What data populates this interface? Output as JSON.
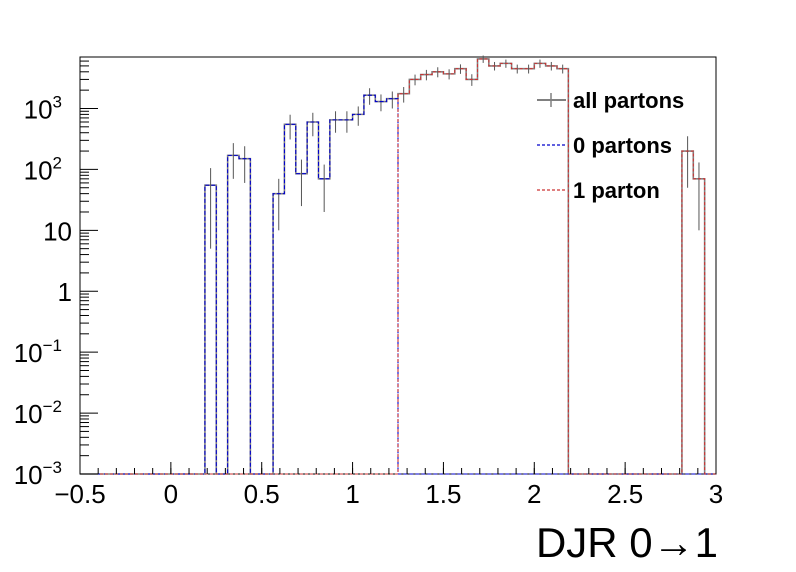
{
  "chart_data": {
    "type": "histogram",
    "title": "",
    "xlabel": "DJR 0→1",
    "ylabel": "",
    "xlim": [
      -0.5,
      3.0
    ],
    "ylim": [
      0.001,
      7000
    ],
    "yscale": "log",
    "grid": false,
    "x_ticks": [
      "−0.5",
      "0",
      "0.5",
      "1",
      "1.5",
      "2",
      "2.5",
      "3"
    ],
    "y_ticks": [
      {
        "base": "10",
        "exp": "−3"
      },
      {
        "base": "10",
        "exp": "−2"
      },
      {
        "base": "10",
        "exp": "−1"
      },
      {
        "base": "1",
        "exp": ""
      },
      {
        "base": "10",
        "exp": ""
      },
      {
        "base": "10",
        "exp": "2"
      },
      {
        "base": "10",
        "exp": "3"
      }
    ],
    "legend_position": "top-right",
    "bin_edges_start": -0.5,
    "bin_width": 0.0625,
    "series": [
      {
        "name": "all partons",
        "color": "#808080",
        "values": [
          0.001,
          0.001,
          0.001,
          0.001,
          0.001,
          0.001,
          0.001,
          0.001,
          0.001,
          0.001,
          0.001,
          55,
          0.001,
          170,
          150,
          0.001,
          0.001,
          40,
          550,
          85,
          600,
          70,
          650,
          650,
          800,
          1650,
          1300,
          1450,
          1750,
          3000,
          3600,
          4000,
          3700,
          4500,
          3000,
          6500,
          5000,
          5500,
          4500,
          4500,
          5500,
          5000,
          4500,
          0.001,
          0.001,
          0.001,
          0.001,
          0.001,
          0.001,
          0.001,
          0.001,
          0.001,
          0.001,
          200,
          70,
          0.001
        ],
        "errors": [
          0,
          0,
          0,
          0,
          0,
          0,
          0,
          0,
          0,
          0,
          0,
          50,
          0,
          100,
          90,
          0,
          0,
          30,
          240,
          60,
          250,
          50,
          250,
          250,
          280,
          500,
          400,
          450,
          500,
          600,
          700,
          750,
          700,
          800,
          650,
          900,
          800,
          850,
          750,
          750,
          850,
          800,
          750,
          0,
          0,
          0,
          0,
          0,
          0,
          0,
          0,
          0,
          0,
          150,
          60,
          0
        ]
      },
      {
        "name": "0 partons",
        "color": "#0000cc",
        "values": [
          0.001,
          0.001,
          0.001,
          0.001,
          0.001,
          0.001,
          0.001,
          0.001,
          0.001,
          0.001,
          0.001,
          55,
          0.001,
          170,
          150,
          0.001,
          0.001,
          40,
          550,
          85,
          600,
          70,
          650,
          650,
          800,
          1650,
          1300,
          1450,
          0.001,
          0.001,
          0.001,
          0.001,
          0.001,
          0.001,
          0.001,
          0.001,
          0.001,
          0.001,
          0.001,
          0.001,
          0.001,
          0.001,
          0.001,
          0.001,
          0.001,
          0.001,
          0.001,
          0.001,
          0.001,
          0.001,
          0.001,
          0.001,
          0.001,
          0.001,
          0.001,
          0.001
        ]
      },
      {
        "name": "1 parton",
        "color": "#cc3333",
        "values": [
          0.001,
          0.001,
          0.001,
          0.001,
          0.001,
          0.001,
          0.001,
          0.001,
          0.001,
          0.001,
          0.001,
          0.001,
          0.001,
          0.001,
          0.001,
          0.001,
          0.001,
          0.001,
          0.001,
          0.001,
          0.001,
          0.001,
          0.001,
          0.001,
          0.001,
          0.001,
          0.001,
          0.001,
          1750,
          3000,
          3600,
          4000,
          3700,
          4500,
          3000,
          6500,
          5000,
          5500,
          4500,
          4500,
          5500,
          5000,
          4500,
          0.001,
          0.001,
          0.001,
          0.001,
          0.001,
          0.001,
          0.001,
          0.001,
          0.001,
          0.001,
          200,
          70,
          0.001
        ]
      }
    ]
  }
}
